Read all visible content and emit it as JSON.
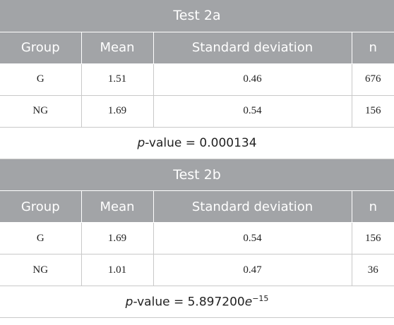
{
  "tests": [
    {
      "title": "Test 2a",
      "columns": [
        "Group",
        "Mean",
        "Standard deviation",
        "n"
      ],
      "rows": [
        [
          "G",
          "1.51",
          "0.46",
          "676"
        ],
        [
          "NG",
          "1.69",
          "0.54",
          "156"
        ]
      ],
      "p_value": {
        "symbol": "p",
        "text": "-value = 0.000134"
      }
    },
    {
      "title": "Test 2b",
      "columns": [
        "Group",
        "Mean",
        "Standard deviation",
        "n"
      ],
      "rows": [
        [
          "G",
          "1.69",
          "0.54",
          "156"
        ],
        [
          "NG",
          "1.01",
          "0.47",
          "36"
        ]
      ],
      "p_value": {
        "symbol": "p",
        "text": "-value = 5.897200",
        "base": "e",
        "exponent": "−15"
      }
    }
  ]
}
